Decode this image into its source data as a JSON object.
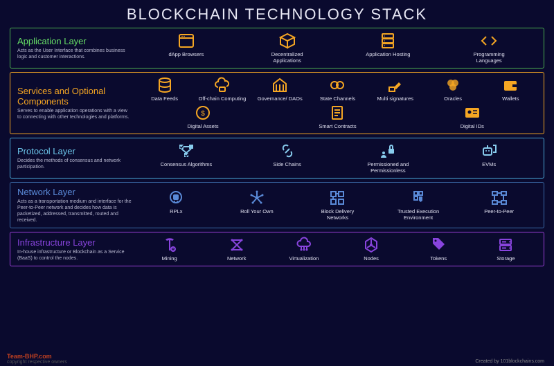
{
  "title": "BLOCKCHAIN TECHNOLOGY STACK",
  "background_color": "#0a0a2e",
  "credit": "Created by 101blockchains.com",
  "watermark_brand": "Team-BHP.com",
  "watermark_sub": "copyright respective owners",
  "layers": [
    {
      "title": "Application Layer",
      "desc": "Acts as the User Interface that combines business logic and customer interactions.",
      "border_color": "#4caf50",
      "title_color": "#66dd66",
      "icon_color": "#f5a623",
      "items": [
        {
          "label": "dApp Browsers",
          "icon": "browser"
        },
        {
          "label": "Decentralized Applications",
          "icon": "cube"
        },
        {
          "label": "Application Hosting",
          "icon": "server"
        },
        {
          "label": "Programming Languages",
          "icon": "code"
        }
      ]
    },
    {
      "title": "Services and Optional Components",
      "desc": "Serves to enable application operations with a view to connecting with other technologies and platforms.",
      "border_color": "#f5a623",
      "title_color": "#f5a623",
      "icon_color": "#f5a623",
      "items": [
        {
          "label": "Data Feeds",
          "icon": "database"
        },
        {
          "label": "Off-chain Computing",
          "icon": "cloud-link"
        },
        {
          "label": "Governance/ DAOs",
          "icon": "building"
        },
        {
          "label": "State Channels",
          "icon": "rings"
        },
        {
          "label": "Multi signatures",
          "icon": "pen"
        },
        {
          "label": "Oracles",
          "icon": "venn"
        },
        {
          "label": "Wallets",
          "icon": "wallet"
        },
        {
          "label": "Digital Assets",
          "icon": "coin"
        },
        {
          "label": "Smart Contracts",
          "icon": "document"
        },
        {
          "label": "Digital IDs",
          "icon": "id-card"
        }
      ]
    },
    {
      "title": "Protocol Layer",
      "desc": "Decides the methods of consensus and network participation.",
      "border_color": "#4aa8d8",
      "title_color": "#6bc4e8",
      "icon_color": "#88ccee",
      "items": [
        {
          "label": "Consensus Algorithms",
          "icon": "checks"
        },
        {
          "label": "Side Chains",
          "icon": "link"
        },
        {
          "label": "Permissioned and Permissionless",
          "icon": "lock-user"
        },
        {
          "label": "EVMs",
          "icon": "robot"
        }
      ]
    },
    {
      "title": "Network Layer",
      "desc": "Acts as a transportation medium and interface for the Peer-to-Peer network and decides how data is packetized, addressed, transmitted, routed and received.",
      "border_color": "#3a6aa8",
      "title_color": "#5a8ad8",
      "icon_color": "#5a8ad8",
      "items": [
        {
          "label": "RPLx",
          "icon": "train"
        },
        {
          "label": "Roll Your Own",
          "icon": "star-net"
        },
        {
          "label": "Block Delivery Networks",
          "icon": "blocks"
        },
        {
          "label": "Trusted Execution Environment",
          "icon": "shield-grid"
        },
        {
          "label": "Peer-to-Peer",
          "icon": "p2p"
        }
      ]
    },
    {
      "title": "Infrastructure Layer",
      "desc": "In-house infrastructure or Blockchain as a Service (BaaS) to control the nodes.",
      "border_color": "#9b3fd8",
      "title_color": "#8844dd",
      "icon_color": "#8844dd",
      "items": [
        {
          "label": "Mining",
          "icon": "pick"
        },
        {
          "label": "Network",
          "icon": "mesh"
        },
        {
          "label": "Virtualization",
          "icon": "vcloud"
        },
        {
          "label": "Nodes",
          "icon": "hex"
        },
        {
          "label": "Tokens",
          "icon": "tag"
        },
        {
          "label": "Storage",
          "icon": "drive"
        }
      ]
    }
  ]
}
